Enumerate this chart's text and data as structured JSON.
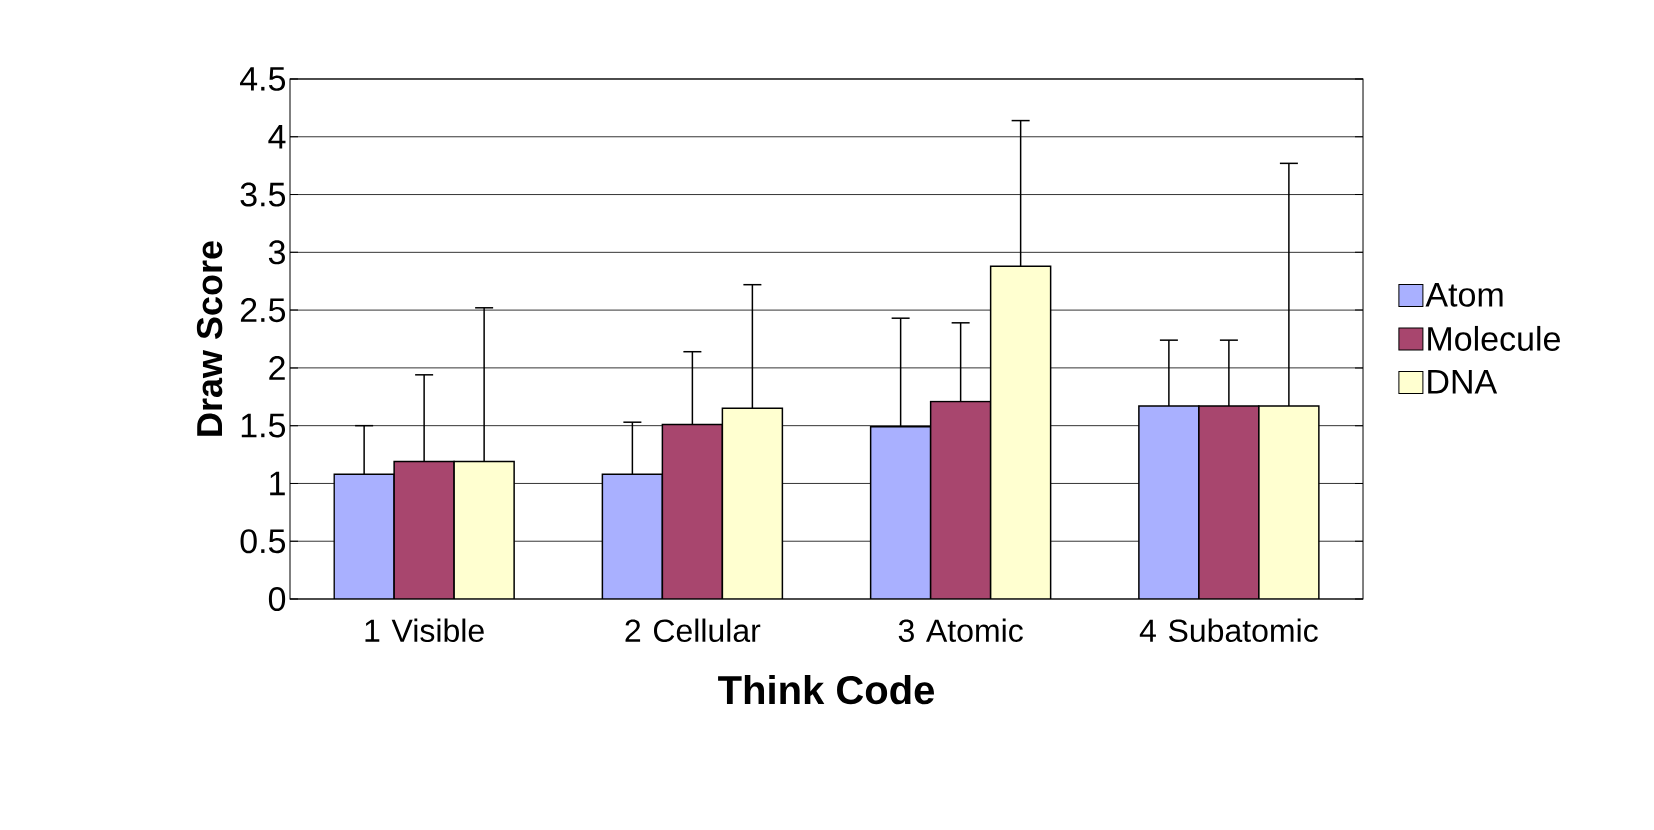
{
  "chart_data": {
    "type": "bar",
    "xlabel": "Think Code",
    "ylabel": "Draw Score",
    "categories": [
      "1 Visible",
      "2 Cellular",
      "3 Atomic",
      "4 Subatomic"
    ],
    "series": [
      {
        "name": "Atom",
        "color": "#a9b0ff",
        "values": [
          1.08,
          1.08,
          1.49,
          1.67
        ],
        "errors": [
          [
            1.08,
            1.5
          ],
          [
            1.08,
            1.53
          ],
          [
            1.49,
            2.43
          ],
          [
            1.67,
            2.24
          ]
        ]
      },
      {
        "name": "Molecule",
        "color": "#a8466e",
        "values": [
          1.19,
          1.51,
          1.71,
          1.67
        ],
        "errors": [
          [
            1.19,
            1.94
          ],
          [
            1.51,
            2.14
          ],
          [
            1.71,
            2.39
          ],
          [
            1.67,
            2.24
          ]
        ]
      },
      {
        "name": "DNA",
        "color": "#ffffd0",
        "values": [
          1.19,
          1.65,
          2.88,
          1.67
        ],
        "errors": [
          [
            1.19,
            2.52
          ],
          [
            1.65,
            2.72
          ],
          [
            2.88,
            4.14
          ],
          [
            1.67,
            3.77
          ]
        ]
      }
    ],
    "ylim": [
      0,
      4.5
    ],
    "yticks": [
      0,
      0.5,
      1,
      1.5,
      2,
      2.5,
      3,
      3.5,
      4,
      4.5
    ],
    "grid": "y",
    "legend": "right"
  }
}
